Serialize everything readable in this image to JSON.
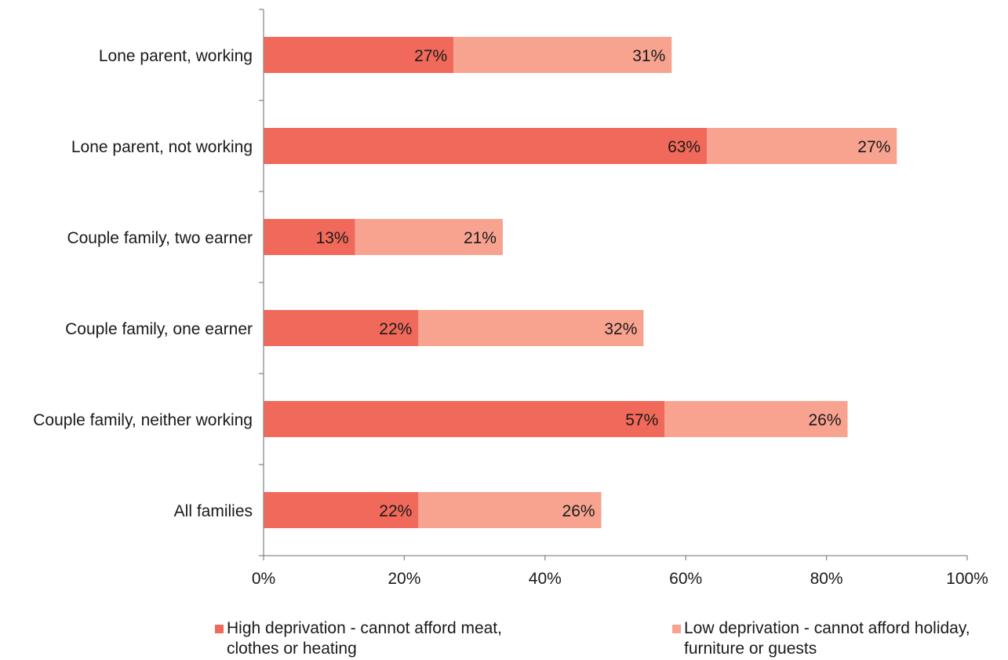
{
  "chart_data": {
    "type": "bar",
    "orientation": "horizontal",
    "stacked": true,
    "categories": [
      "Lone parent, working",
      "Lone parent, not working",
      "Couple family, two earner",
      "Couple family, one earner",
      "Couple family, neither working",
      "All families"
    ],
    "series": [
      {
        "name": "High deprivation - cannot afford meat, clothes or heating",
        "color": "#f0695a",
        "values": [
          27,
          63,
          13,
          22,
          57,
          22
        ],
        "data_labels": [
          "27%",
          "63%",
          "13%",
          "22%",
          "57%",
          "22%"
        ]
      },
      {
        "name": "Low deprivation - cannot afford holiday, furniture or guests",
        "color": "#f7a38f",
        "values": [
          31,
          27,
          21,
          32,
          26,
          26
        ],
        "data_labels": [
          "31%",
          "27%",
          "21%",
          "32%",
          "26%",
          "26%"
        ]
      }
    ],
    "xlim": [
      0,
      100
    ],
    "xticks": [
      0,
      20,
      40,
      60,
      80,
      100
    ],
    "xtick_labels": [
      "0%",
      "20%",
      "40%",
      "60%",
      "80%",
      "100%"
    ],
    "legend_position": "bottom",
    "grid": false,
    "title": "",
    "xlabel": "",
    "ylabel": ""
  },
  "legend": {
    "items": [
      {
        "label": "High deprivation - cannot afford meat,\nclothes or heating",
        "color": "#f0695a"
      },
      {
        "label": "Low deprivation - cannot afford holiday,\nfurniture or guests",
        "color": "#f7a38f"
      }
    ]
  }
}
